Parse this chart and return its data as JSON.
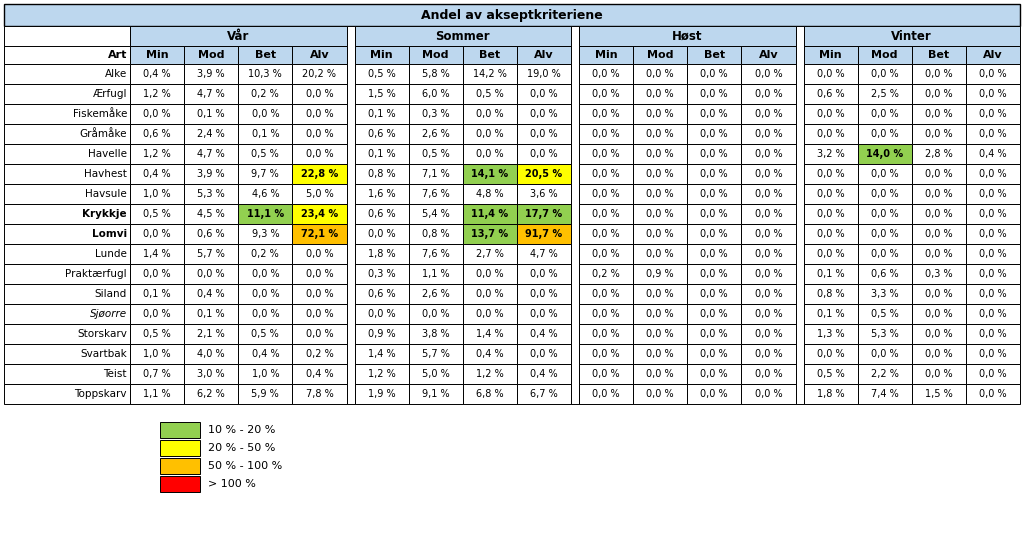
{
  "title": "Andel av akseptkriteriene",
  "seasons": [
    "Vår",
    "Sommer",
    "Høst",
    "Vinter"
  ],
  "subcols": [
    "Min",
    "Mod",
    "Bet",
    "Alv"
  ],
  "rows": [
    {
      "art": "Alke",
      "bold": false,
      "italic": false,
      "var": [
        "0,4 %",
        "3,9 %",
        "10,3 %",
        "20,2 %"
      ],
      "sommer": [
        "0,5 %",
        "5,8 %",
        "14,2 %",
        "19,0 %"
      ],
      "host": [
        "0,0 %",
        "0,0 %",
        "0,0 %",
        "0,0 %"
      ],
      "vinter": [
        "0,0 %",
        "0,0 %",
        "0,0 %",
        "0,0 %"
      ]
    },
    {
      "art": "Ærfugl",
      "bold": false,
      "italic": false,
      "var": [
        "1,2 %",
        "4,7 %",
        "0,2 %",
        "0,0 %"
      ],
      "sommer": [
        "1,5 %",
        "6,0 %",
        "0,5 %",
        "0,0 %"
      ],
      "host": [
        "0,0 %",
        "0,0 %",
        "0,0 %",
        "0,0 %"
      ],
      "vinter": [
        "0,6 %",
        "2,5 %",
        "0,0 %",
        "0,0 %"
      ]
    },
    {
      "art": "Fiskemåke",
      "bold": false,
      "italic": false,
      "var": [
        "0,0 %",
        "0,1 %",
        "0,0 %",
        "0,0 %"
      ],
      "sommer": [
        "0,1 %",
        "0,3 %",
        "0,0 %",
        "0,0 %"
      ],
      "host": [
        "0,0 %",
        "0,0 %",
        "0,0 %",
        "0,0 %"
      ],
      "vinter": [
        "0,0 %",
        "0,0 %",
        "0,0 %",
        "0,0 %"
      ]
    },
    {
      "art": "Gråmåke",
      "bold": false,
      "italic": false,
      "var": [
        "0,6 %",
        "2,4 %",
        "0,1 %",
        "0,0 %"
      ],
      "sommer": [
        "0,6 %",
        "2,6 %",
        "0,0 %",
        "0,0 %"
      ],
      "host": [
        "0,0 %",
        "0,0 %",
        "0,0 %",
        "0,0 %"
      ],
      "vinter": [
        "0,0 %",
        "0,0 %",
        "0,0 %",
        "0,0 %"
      ]
    },
    {
      "art": "Havelle",
      "bold": false,
      "italic": false,
      "var": [
        "1,2 %",
        "4,7 %",
        "0,5 %",
        "0,0 %"
      ],
      "sommer": [
        "0,1 %",
        "0,5 %",
        "0,0 %",
        "0,0 %"
      ],
      "host": [
        "0,0 %",
        "0,0 %",
        "0,0 %",
        "0,0 %"
      ],
      "vinter": [
        "3,2 %",
        "14,0 %",
        "2,8 %",
        "0,4 %"
      ]
    },
    {
      "art": "Havhest",
      "bold": false,
      "italic": false,
      "var": [
        "0,4 %",
        "3,9 %",
        "9,7 %",
        "22,8 %"
      ],
      "sommer": [
        "0,8 %",
        "7,1 %",
        "14,1 %",
        "20,5 %"
      ],
      "host": [
        "0,0 %",
        "0,0 %",
        "0,0 %",
        "0,0 %"
      ],
      "vinter": [
        "0,0 %",
        "0,0 %",
        "0,0 %",
        "0,0 %"
      ]
    },
    {
      "art": "Havsule",
      "bold": false,
      "italic": false,
      "var": [
        "1,0 %",
        "5,3 %",
        "4,6 %",
        "5,0 %"
      ],
      "sommer": [
        "1,6 %",
        "7,6 %",
        "4,8 %",
        "3,6 %"
      ],
      "host": [
        "0,0 %",
        "0,0 %",
        "0,0 %",
        "0,0 %"
      ],
      "vinter": [
        "0,0 %",
        "0,0 %",
        "0,0 %",
        "0,0 %"
      ]
    },
    {
      "art": "Krykkje",
      "bold": true,
      "italic": false,
      "var": [
        "0,5 %",
        "4,5 %",
        "11,1 %",
        "23,4 %"
      ],
      "sommer": [
        "0,6 %",
        "5,4 %",
        "11,4 %",
        "17,7 %"
      ],
      "host": [
        "0,0 %",
        "0,0 %",
        "0,0 %",
        "0,0 %"
      ],
      "vinter": [
        "0,0 %",
        "0,0 %",
        "0,0 %",
        "0,0 %"
      ]
    },
    {
      "art": "Lomvi",
      "bold": true,
      "italic": false,
      "var": [
        "0,0 %",
        "0,6 %",
        "9,3 %",
        "72,1 %"
      ],
      "sommer": [
        "0,0 %",
        "0,8 %",
        "13,7 %",
        "91,7 %"
      ],
      "host": [
        "0,0 %",
        "0,0 %",
        "0,0 %",
        "0,0 %"
      ],
      "vinter": [
        "0,0 %",
        "0,0 %",
        "0,0 %",
        "0,0 %"
      ]
    },
    {
      "art": "Lunde",
      "bold": false,
      "italic": false,
      "var": [
        "1,4 %",
        "5,7 %",
        "0,2 %",
        "0,0 %"
      ],
      "sommer": [
        "1,8 %",
        "7,6 %",
        "2,7 %",
        "4,7 %"
      ],
      "host": [
        "0,0 %",
        "0,0 %",
        "0,0 %",
        "0,0 %"
      ],
      "vinter": [
        "0,0 %",
        "0,0 %",
        "0,0 %",
        "0,0 %"
      ]
    },
    {
      "art": "Praktærfugl",
      "bold": false,
      "italic": false,
      "var": [
        "0,0 %",
        "0,0 %",
        "0,0 %",
        "0,0 %"
      ],
      "sommer": [
        "0,3 %",
        "1,1 %",
        "0,0 %",
        "0,0 %"
      ],
      "host": [
        "0,2 %",
        "0,9 %",
        "0,0 %",
        "0,0 %"
      ],
      "vinter": [
        "0,1 %",
        "0,6 %",
        "0,3 %",
        "0,0 %"
      ]
    },
    {
      "art": "Siland",
      "bold": false,
      "italic": false,
      "var": [
        "0,1 %",
        "0,4 %",
        "0,0 %",
        "0,0 %"
      ],
      "sommer": [
        "0,6 %",
        "2,6 %",
        "0,0 %",
        "0,0 %"
      ],
      "host": [
        "0,0 %",
        "0,0 %",
        "0,0 %",
        "0,0 %"
      ],
      "vinter": [
        "0,8 %",
        "3,3 %",
        "0,0 %",
        "0,0 %"
      ]
    },
    {
      "art": "Sjøorre",
      "bold": false,
      "italic": true,
      "var": [
        "0,0 %",
        "0,1 %",
        "0,0 %",
        "0,0 %"
      ],
      "sommer": [
        "0,0 %",
        "0,0 %",
        "0,0 %",
        "0,0 %"
      ],
      "host": [
        "0,0 %",
        "0,0 %",
        "0,0 %",
        "0,0 %"
      ],
      "vinter": [
        "0,1 %",
        "0,5 %",
        "0,0 %",
        "0,0 %"
      ]
    },
    {
      "art": "Storskarv",
      "bold": false,
      "italic": false,
      "var": [
        "0,5 %",
        "2,1 %",
        "0,5 %",
        "0,0 %"
      ],
      "sommer": [
        "0,9 %",
        "3,8 %",
        "1,4 %",
        "0,4 %"
      ],
      "host": [
        "0,0 %",
        "0,0 %",
        "0,0 %",
        "0,0 %"
      ],
      "vinter": [
        "1,3 %",
        "5,3 %",
        "0,0 %",
        "0,0 %"
      ]
    },
    {
      "art": "Svartbak",
      "bold": false,
      "italic": false,
      "var": [
        "1,0 %",
        "4,0 %",
        "0,4 %",
        "0,2 %"
      ],
      "sommer": [
        "1,4 %",
        "5,7 %",
        "0,4 %",
        "0,0 %"
      ],
      "host": [
        "0,0 %",
        "0,0 %",
        "0,0 %",
        "0,0 %"
      ],
      "vinter": [
        "0,0 %",
        "0,0 %",
        "0,0 %",
        "0,0 %"
      ]
    },
    {
      "art": "Teist",
      "bold": false,
      "italic": false,
      "var": [
        "0,7 %",
        "3,0 %",
        "1,0 %",
        "0,4 %"
      ],
      "sommer": [
        "1,2 %",
        "5,0 %",
        "1,2 %",
        "0,4 %"
      ],
      "host": [
        "0,0 %",
        "0,0 %",
        "0,0 %",
        "0,0 %"
      ],
      "vinter": [
        "0,5 %",
        "2,2 %",
        "0,0 %",
        "0,0 %"
      ]
    },
    {
      "art": "Toppskarv",
      "bold": false,
      "italic": false,
      "var": [
        "1,1 %",
        "6,2 %",
        "5,9 %",
        "7,8 %"
      ],
      "sommer": [
        "1,9 %",
        "9,1 %",
        "6,8 %",
        "6,7 %"
      ],
      "host": [
        "0,0 %",
        "0,0 %",
        "0,0 %",
        "0,0 %"
      ],
      "vinter": [
        "1,8 %",
        "7,4 %",
        "1,5 %",
        "0,0 %"
      ]
    }
  ],
  "colored_cells": [
    {
      "art": "Havhest",
      "season": "var",
      "col": 3,
      "color": "#FFFF00"
    },
    {
      "art": "Krykkje",
      "season": "var",
      "col": 2,
      "color": "#92D050"
    },
    {
      "art": "Krykkje",
      "season": "var",
      "col": 3,
      "color": "#FFFF00"
    },
    {
      "art": "Lomvi",
      "season": "var",
      "col": 3,
      "color": "#FFC000"
    },
    {
      "art": "Havhest",
      "season": "sommer",
      "col": 2,
      "color": "#92D050"
    },
    {
      "art": "Havhest",
      "season": "sommer",
      "col": 3,
      "color": "#FFFF00"
    },
    {
      "art": "Krykkje",
      "season": "sommer",
      "col": 2,
      "color": "#92D050"
    },
    {
      "art": "Krykkje",
      "season": "sommer",
      "col": 3,
      "color": "#92D050"
    },
    {
      "art": "Lomvi",
      "season": "sommer",
      "col": 2,
      "color": "#92D050"
    },
    {
      "art": "Lomvi",
      "season": "sommer",
      "col": 3,
      "color": "#FFC000"
    },
    {
      "art": "Havelle",
      "season": "vinter",
      "col": 1,
      "color": "#92D050"
    }
  ],
  "legend": [
    {
      "color": "#92D050",
      "label": "10 % - 20 %"
    },
    {
      "color": "#FFFF00",
      "label": "20 % - 50 %"
    },
    {
      "color": "#FFC000",
      "label": "50 % - 100 %"
    },
    {
      "color": "#FF0000",
      "label": "> 100 %"
    }
  ],
  "header_bg": "#BDD7EE",
  "border_color": "#000000"
}
